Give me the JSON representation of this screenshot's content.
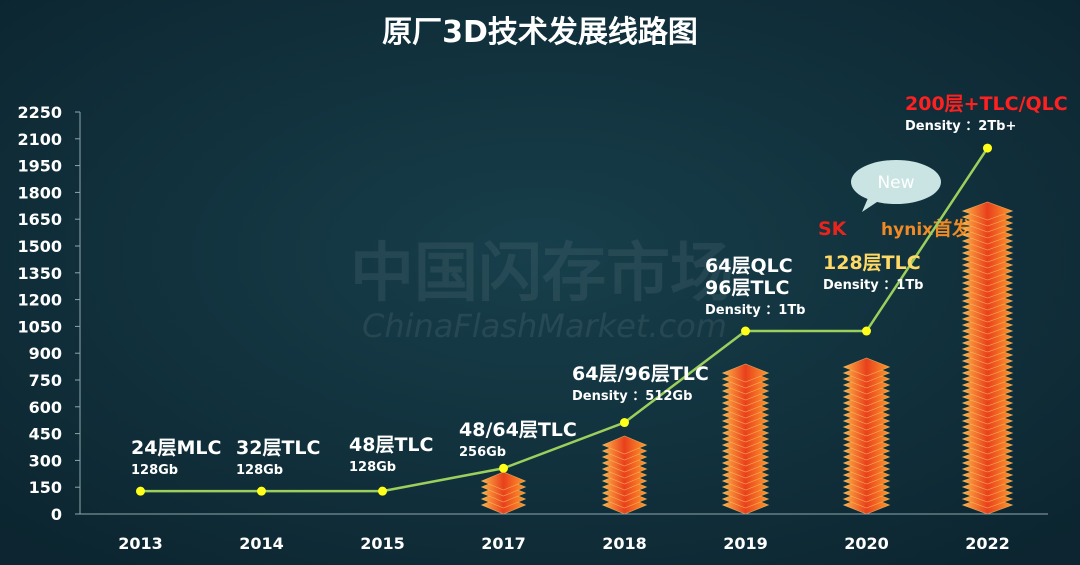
{
  "chart_data": {
    "type": "line",
    "title": "原厂3D技术发展线路图",
    "categories": [
      "2013",
      "2014",
      "2015",
      "2017",
      "2018",
      "2019",
      "2020",
      "2022"
    ],
    "values": [
      128,
      128,
      128,
      256,
      512,
      1024,
      1024,
      2048
    ],
    "ylim": [
      0,
      2250
    ],
    "yticks": [
      0,
      150,
      300,
      450,
      600,
      750,
      900,
      1050,
      1200,
      1350,
      1500,
      1650,
      1800,
      1950,
      2100,
      2250
    ],
    "line_color": "#9ccf5c",
    "point_color": "#ffff1a",
    "annotations": [
      {
        "lines": [
          "24层MLC",
          "128Gb"
        ],
        "color": "#ffffff"
      },
      {
        "lines": [
          "32层TLC",
          "128Gb"
        ],
        "color": "#ffffff"
      },
      {
        "lines": [
          "48层TLC",
          "128Gb"
        ],
        "color": "#ffffff"
      },
      {
        "lines": [
          "48/64层TLC",
          "256Gb"
        ],
        "color": "#ffffff"
      },
      {
        "lines": [
          "64层/96层TLC",
          "Density ：512Gb"
        ],
        "color": "#ffffff"
      },
      {
        "lines": [
          "64层QLC",
          "96层TLC",
          "Density ：1Tb"
        ],
        "color": "#ffffff"
      },
      {
        "lines": [
          "128层TLC",
          "Density ：1Tb"
        ],
        "color": "#ffd966"
      },
      {
        "lines": [
          "200层+TLC/QLC",
          "Density ：2Tb+"
        ],
        "color": "#ff2020"
      }
    ],
    "badge": "New",
    "brand": {
      "sk": "SK",
      "hynix": "hynix",
      "first": "首发"
    },
    "watermark": {
      "cn": "中国闪存市场",
      "en": "ChinaFlashMarket.com"
    }
  }
}
